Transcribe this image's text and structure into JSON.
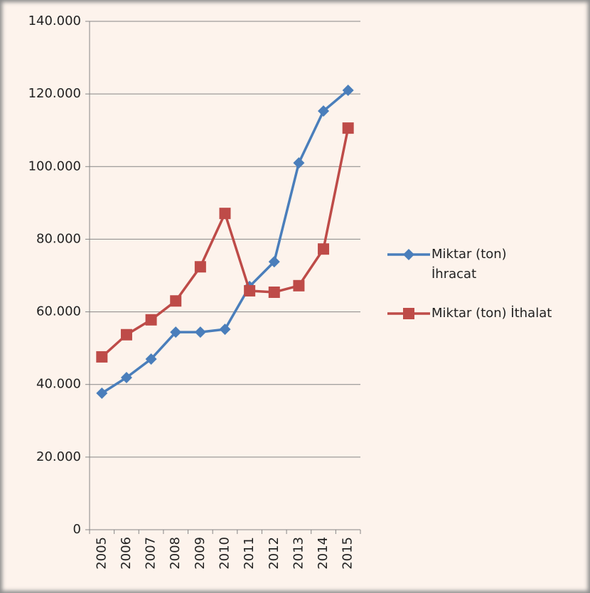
{
  "chart_data": {
    "type": "line",
    "categories": [
      "2005",
      "2006",
      "2007",
      "2008",
      "2009",
      "2010",
      "2011",
      "2012",
      "2013",
      "2014",
      "2015"
    ],
    "series": [
      {
        "name": "Miktar (ton) İhracat",
        "color": "#4a7ebb",
        "marker": "diamond",
        "values": [
          37600,
          41900,
          47000,
          54400,
          54400,
          55200,
          67000,
          73800,
          101000,
          115300,
          121000
        ]
      },
      {
        "name": "Miktar (ton) İthalat",
        "color": "#be4b48",
        "marker": "square",
        "values": [
          47600,
          53700,
          57800,
          63000,
          72400,
          87100,
          65800,
          65400,
          67200,
          77300,
          110600
        ]
      }
    ],
    "ylim": [
      0,
      140000
    ],
    "yticks": [
      0,
      {
        "value": 20000,
        "label": "20.000"
      },
      {
        "value": 40000,
        "label": "40.000"
      },
      {
        "value": 60000,
        "label": "60.000"
      },
      {
        "value": 80000,
        "label": "80.000"
      },
      {
        "value": 100000,
        "label": "100.000"
      },
      {
        "value": 120000,
        "label": "120.000"
      },
      {
        "value": 140000,
        "label": "140.000"
      }
    ],
    "grid": true,
    "legend": "right"
  }
}
